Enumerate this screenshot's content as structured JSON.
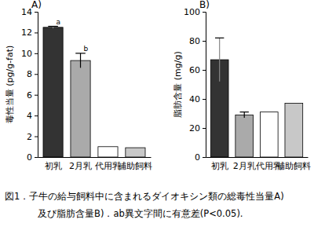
{
  "chart_data": [
    {
      "type": "bar",
      "title": "A)",
      "y_label": "毒性当量 (pg/g-fat)",
      "categories": [
        "初乳",
        "2月乳",
        "代用乳",
        "補助飼料"
      ],
      "values": [
        12.5,
        9.3,
        1.0,
        0.9
      ],
      "errors": [
        0.1,
        0.7,
        null,
        null
      ],
      "colors": [
        "#333333",
        "#aaaaaa",
        "#ffffff",
        "#c8c8c8"
      ],
      "ylim": [
        0,
        14
      ],
      "yticks": [
        0,
        2,
        4,
        6,
        8,
        10,
        12,
        14
      ],
      "annotations": [
        {
          "text": "a",
          "x": "初乳"
        },
        {
          "text": "b",
          "x": "2月乳"
        }
      ]
    },
    {
      "type": "bar",
      "title": "B)",
      "y_label": "脂肪含量 (mg/g)",
      "categories": [
        "初乳",
        "2月乳",
        "代用乳",
        "補助飼料"
      ],
      "values": [
        67,
        29,
        31,
        37
      ],
      "errors": [
        15,
        2,
        null,
        null
      ],
      "colors": [
        "#333333",
        "#aaaaaa",
        "#ffffff",
        "#c8c8c8"
      ],
      "ylim": [
        0,
        100
      ],
      "yticks": [
        0,
        20,
        40,
        60,
        80,
        100
      ]
    }
  ],
  "caption": [
    "図1．子牛の給与飼料中に含まれるダイオキシン類の総毒性当量A)",
    "及び脂肪含量B)．ab異文字間に有意差(P<0.05)."
  ]
}
